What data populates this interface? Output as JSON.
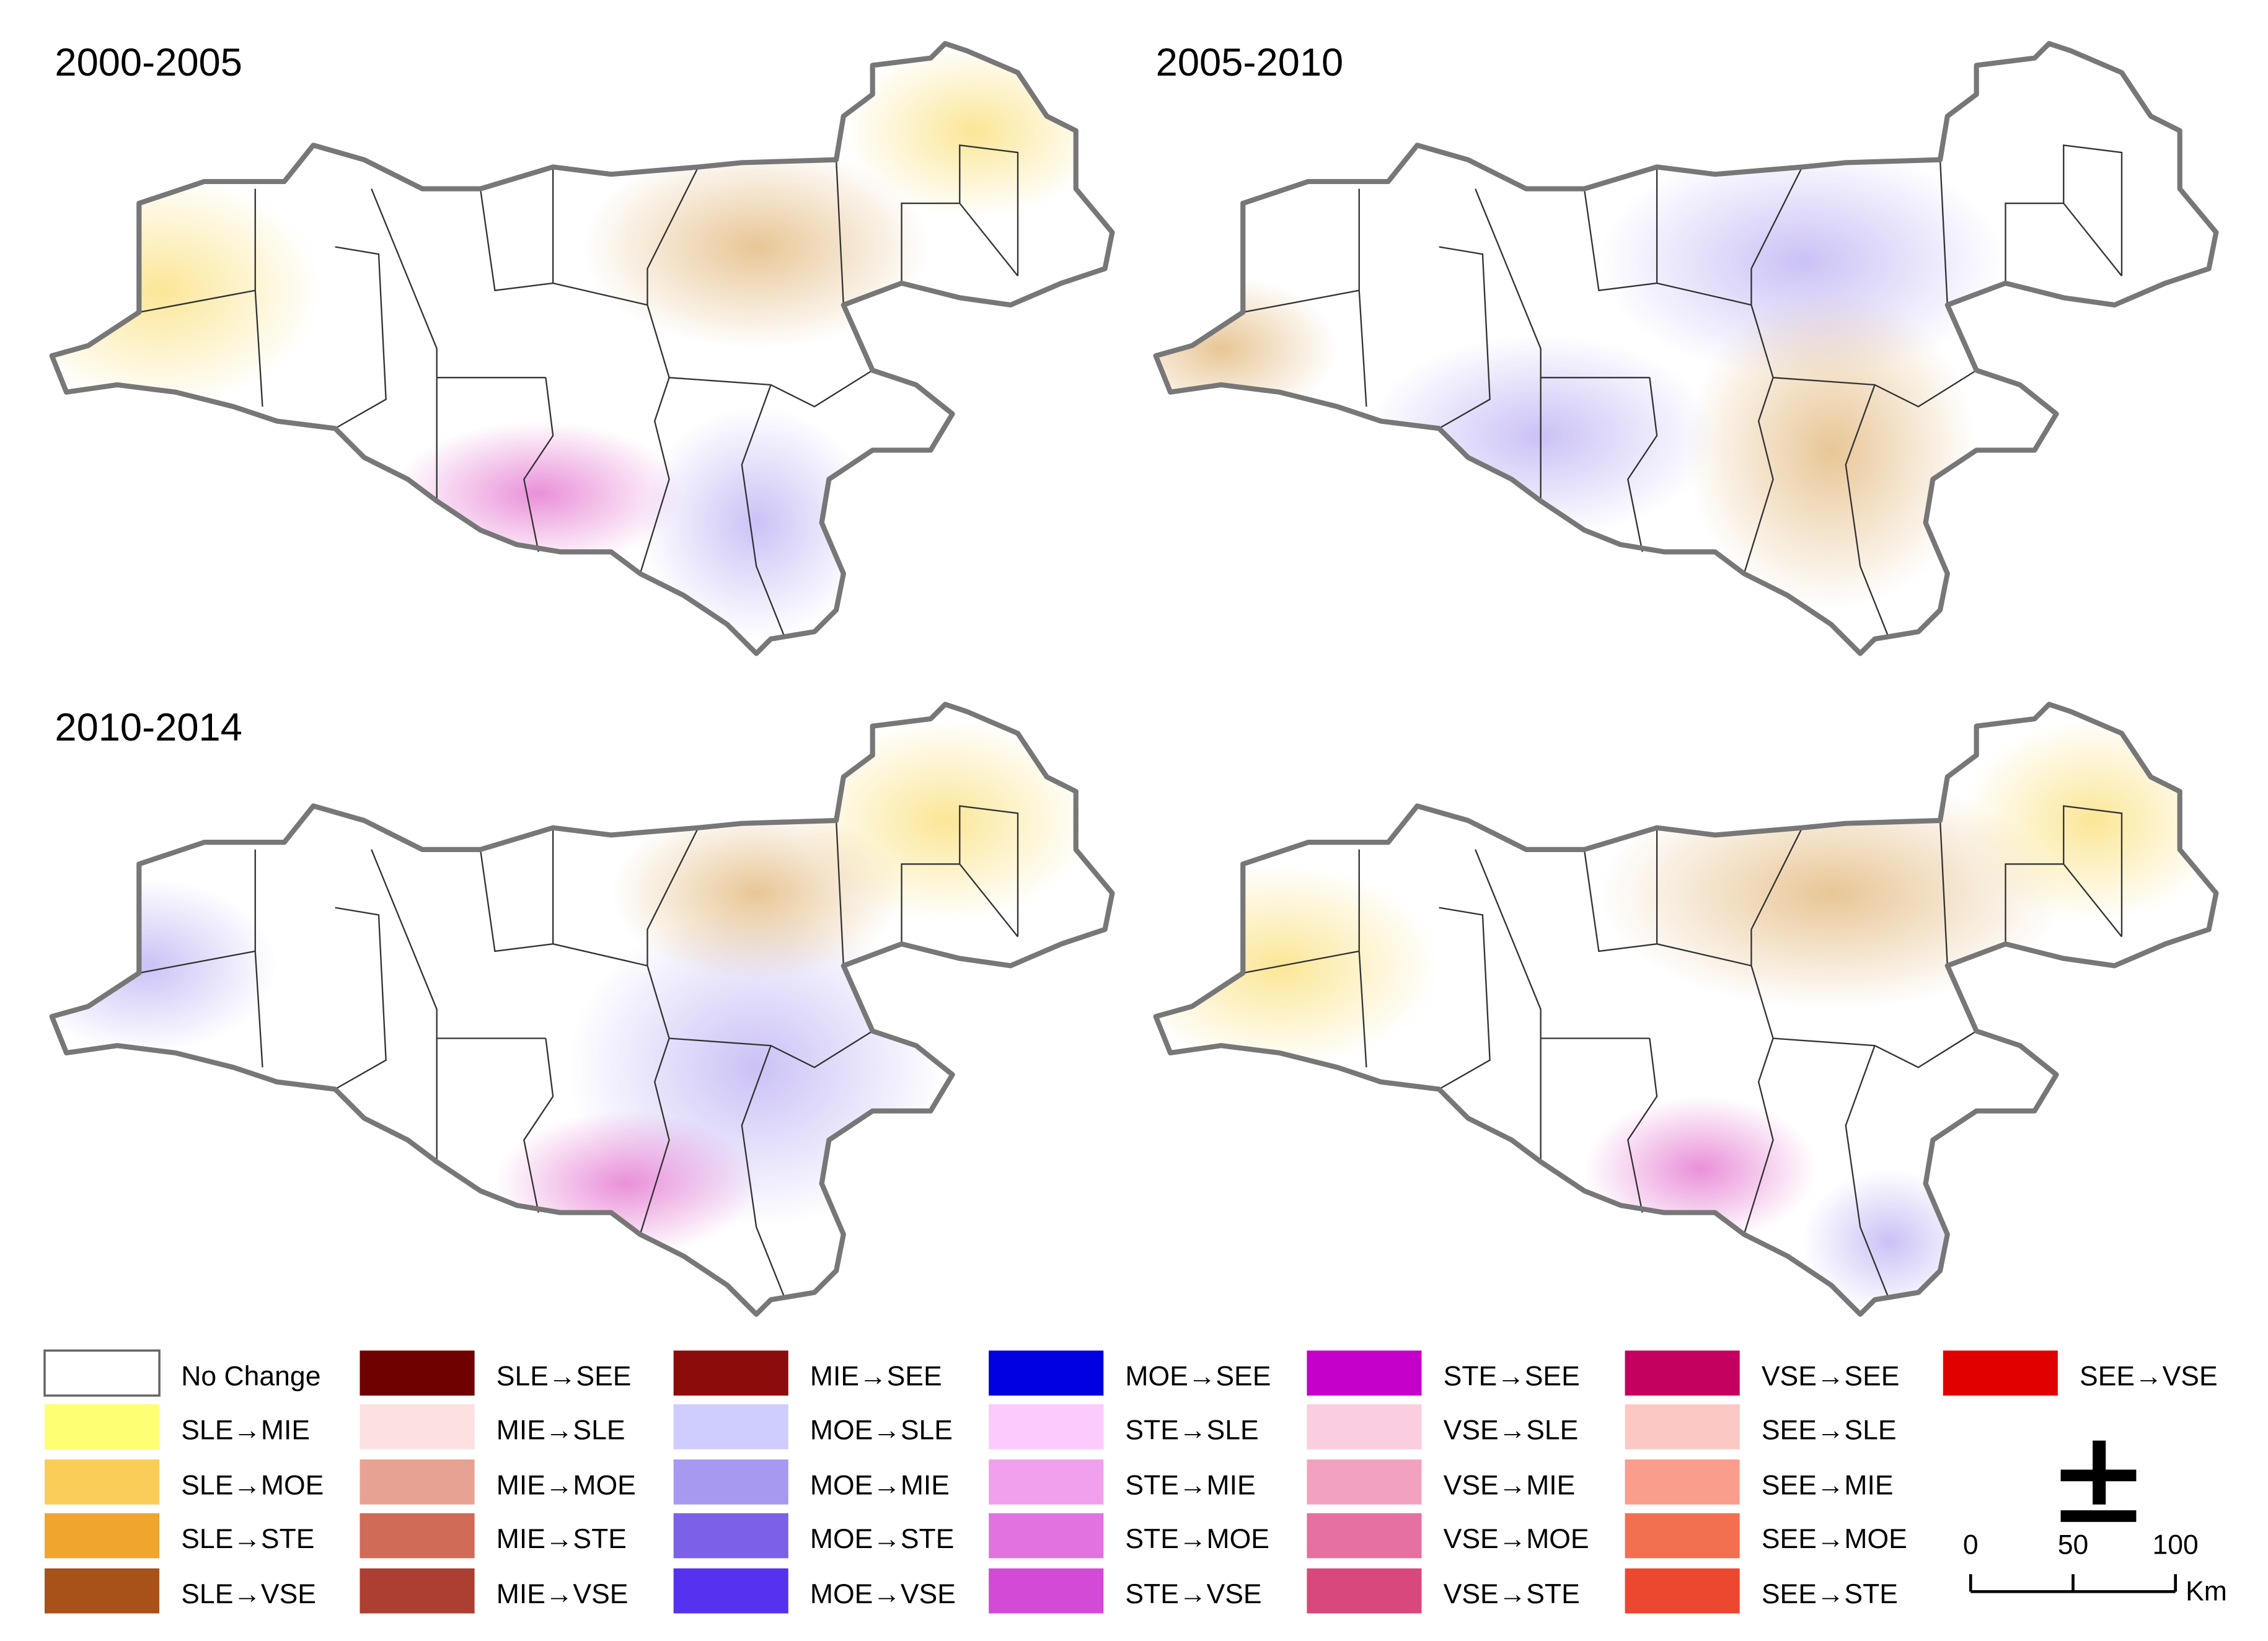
{
  "panels": [
    {
      "title": "2000-2005"
    },
    {
      "title": "2005-2010"
    },
    {
      "title": "2010-2014"
    },
    {
      "title": null
    }
  ],
  "legend": {
    "columns": [
      [
        {
          "label": "No Change",
          "color": "#ffffff"
        },
        {
          "label": "SLE→MIE",
          "color": "#ffff73"
        },
        {
          "label": "SLE→MOE",
          "color": "#f9cd57"
        },
        {
          "label": "SLE→STE",
          "color": "#f0a52f"
        },
        {
          "label": "SLE→VSE",
          "color": "#a8521a"
        }
      ],
      [
        {
          "label": "SLE→SEE",
          "color": "#6e0000"
        },
        {
          "label": "MIE→SLE",
          "color": "#fde0e0"
        },
        {
          "label": "MIE→MOE",
          "color": "#e8a294"
        },
        {
          "label": "MIE→STE",
          "color": "#cf6b56"
        },
        {
          "label": "MIE→VSE",
          "color": "#ac3f31"
        }
      ],
      [
        {
          "label": "MIE→SEE",
          "color": "#8c0c0c"
        },
        {
          "label": "MOE→SLE",
          "color": "#cfcdfd"
        },
        {
          "label": "MOE→MIE",
          "color": "#a798f0"
        },
        {
          "label": "MOE→STE",
          "color": "#7c60e8"
        },
        {
          "label": "MOE→VSE",
          "color": "#5632f0"
        }
      ],
      [
        {
          "label": "MOE→SEE",
          "color": "#0000e0"
        },
        {
          "label": "STE→SLE",
          "color": "#fdcafd"
        },
        {
          "label": "STE→MIE",
          "color": "#f0a0ec"
        },
        {
          "label": "STE→MOE",
          "color": "#e272e0"
        },
        {
          "label": "STE→VSE",
          "color": "#d24ad6"
        }
      ],
      [
        {
          "label": "STE→SEE",
          "color": "#c400c8"
        },
        {
          "label": "VSE→SLE",
          "color": "#fbcde0"
        },
        {
          "label": "VSE→MIE",
          "color": "#f2a2c0"
        },
        {
          "label": "VSE→MOE",
          "color": "#e670a0"
        },
        {
          "label": "VSE→STE",
          "color": "#d8487c"
        }
      ],
      [
        {
          "label": "VSE→SEE",
          "color": "#c4005e"
        },
        {
          "label": "SEE→SLE",
          "color": "#fcc8c4"
        },
        {
          "label": "SEE→MIE",
          "color": "#fa9d8c"
        },
        {
          "label": "SEE→MOE",
          "color": "#f27050"
        },
        {
          "label": "SEE→STE",
          "color": "#ec4830"
        }
      ],
      [
        {
          "label": "SEE→VSE",
          "color": "#e00000"
        }
      ]
    ]
  },
  "scale_bar": {
    "ticks": [
      0,
      50,
      100
    ],
    "unit": "Km"
  }
}
